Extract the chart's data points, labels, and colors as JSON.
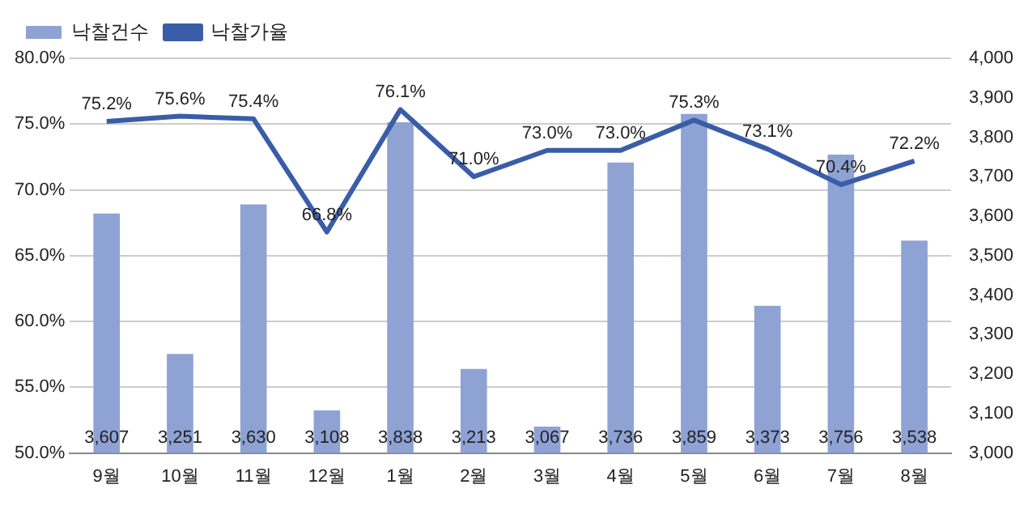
{
  "chart_data": {
    "type": "bar",
    "categories": [
      "9월",
      "10월",
      "11월",
      "12월",
      "1월",
      "2월",
      "3월",
      "4월",
      "5월",
      "6월",
      "7월",
      "8월"
    ],
    "series": [
      {
        "name": "낙찰건수",
        "axis": "y2",
        "color": "#8ea2d4",
        "values": [
          3607,
          3251,
          3630,
          3108,
          3838,
          3213,
          3067,
          3736,
          3859,
          3373,
          3756,
          3538
        ],
        "value_labels": [
          "3,607",
          "3,251",
          "3,630",
          "3,108",
          "3,838",
          "3,213",
          "3,067",
          "3,736",
          "3,859",
          "3,373",
          "3,756",
          "3,538"
        ]
      },
      {
        "name": "낙찰가율",
        "type": "line",
        "axis": "y",
        "color": "#3a5da8",
        "values": [
          75.2,
          75.6,
          75.4,
          66.8,
          76.1,
          71.0,
          73.0,
          73.0,
          75.3,
          73.1,
          70.4,
          72.2
        ],
        "value_labels": [
          "75.2%",
          "75.6%",
          "75.4%",
          "66.8%",
          "76.1%",
          "71.0%",
          "73.0%",
          "73.0%",
          "75.3%",
          "73.1%",
          "70.4%",
          "72.2%"
        ]
      }
    ],
    "ylim": [
      50,
      80
    ],
    "yticks": [
      {
        "value": 50,
        "label": "50.0%"
      },
      {
        "value": 55,
        "label": "55.0%"
      },
      {
        "value": 60,
        "label": "60.0%"
      },
      {
        "value": 65,
        "label": "65.0%"
      },
      {
        "value": 70,
        "label": "70.0%"
      },
      {
        "value": 75,
        "label": "75.0%"
      },
      {
        "value": 80,
        "label": "80.0%"
      }
    ],
    "y2lim": [
      3000,
      4000
    ],
    "y2ticks": [
      {
        "value": 3000,
        "label": "3,000"
      },
      {
        "value": 3100,
        "label": "3,100"
      },
      {
        "value": 3200,
        "label": "3,200"
      },
      {
        "value": 3300,
        "label": "3,300"
      },
      {
        "value": 3400,
        "label": "3,400"
      },
      {
        "value": 3500,
        "label": "3,500"
      },
      {
        "value": 3600,
        "label": "3,600"
      },
      {
        "value": 3700,
        "label": "3,700"
      },
      {
        "value": 3800,
        "label": "3,800"
      },
      {
        "value": 3900,
        "label": "3,900"
      },
      {
        "value": 4000,
        "label": "4,000"
      }
    ],
    "grid": "y",
    "legend": "top left",
    "marker": "none",
    "line_style": "solid"
  }
}
